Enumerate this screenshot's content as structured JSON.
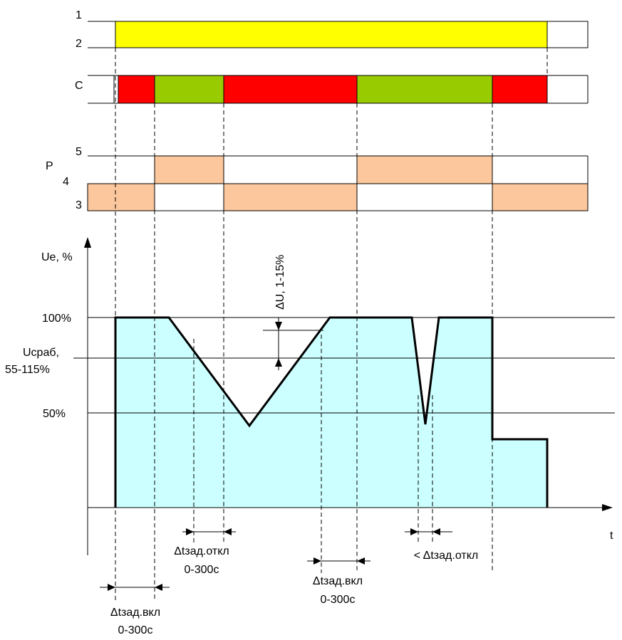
{
  "colors": {
    "supply": "#ffff00",
    "contact_off": "#ff0000",
    "contact_on": "#99cc00",
    "relay": "#fcc79c",
    "fill": "#ccffff",
    "line": "#000000"
  },
  "labels": {
    "row1": "1",
    "row2": "2",
    "rowC": "C",
    "row5": "5",
    "rowP": "P",
    "row4": "4",
    "row3": "3",
    "ue_axis": "Ue, %",
    "t_axis": "t",
    "level_100": "100%",
    "ucrab_1": "Uсраб,",
    "ucrab_2": "55-115%",
    "level_50": "50%",
    "hysteresis": "ΔU, 1-15%"
  },
  "timings": [
    {
      "line1": "Δtзад.вкл",
      "line2": "0-300с"
    },
    {
      "line1": "Δtзад.откл",
      "line2": "0-300с"
    },
    {
      "line1": "Δtзад.вкл",
      "line2": "0-300с"
    },
    {
      "line1": "< Δtзад.откл",
      "line2": ""
    }
  ]
}
